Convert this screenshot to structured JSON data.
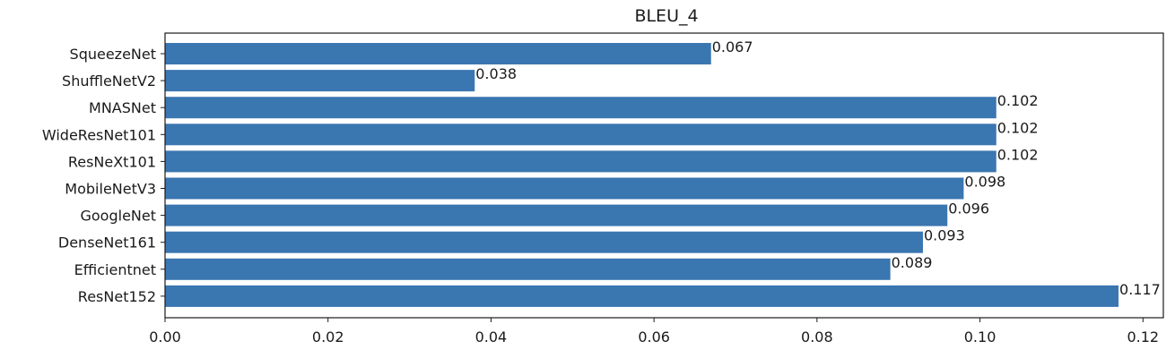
{
  "chart_data": {
    "type": "bar",
    "orientation": "horizontal",
    "title": "BLEU_4",
    "xlabel": "",
    "ylabel": "",
    "categories": [
      "SqueezeNet",
      "ShuffleNetV2",
      "MNASNet",
      "WideResNet101",
      "ResNeXt101",
      "MobileNetV3",
      "GoogleNet",
      "DenseNet161",
      "Efficientnet",
      "ResNet152"
    ],
    "values": [
      0.067,
      0.038,
      0.102,
      0.102,
      0.102,
      0.098,
      0.096,
      0.093,
      0.089,
      0.117
    ],
    "value_labels": [
      "0.067",
      "0.038",
      "0.102",
      "0.102",
      "0.102",
      "0.098",
      "0.096",
      "0.093",
      "0.089",
      "0.117"
    ],
    "xlim": [
      0,
      0.1225
    ],
    "xticks": [
      0.0,
      0.02,
      0.04,
      0.06,
      0.08,
      0.1,
      0.12
    ],
    "xtick_labels": [
      "0.00",
      "0.02",
      "0.04",
      "0.06",
      "0.08",
      "0.10",
      "0.12"
    ],
    "grid": false,
    "legend": "none",
    "bar_color": "#3a76b0"
  }
}
